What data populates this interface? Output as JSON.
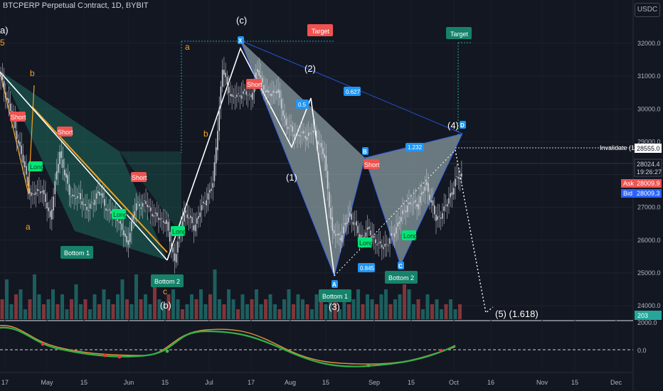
{
  "header": {
    "title": "BTCPERP Perpetual Contract, 1D, BYBIT",
    "currency": "USDC"
  },
  "chart_data": {
    "type": "candlestick",
    "price_ticks": [
      24000,
      25000,
      26000,
      27000,
      28000,
      29000,
      30000,
      31000,
      32000
    ],
    "price_tick_labels": [
      "24000.0",
      "25000.0",
      "26000.0",
      "27000.0",
      "28000.0",
      "29000.0",
      "30000.0",
      "31000.0",
      "32000.0"
    ],
    "x_labels": [
      "17",
      "May",
      "15",
      "Jun",
      "15",
      "Jul",
      "17",
      "Aug",
      "15",
      "Sep",
      "15",
      "Oct",
      "16",
      "Nov",
      "15",
      "Dec"
    ],
    "price_path": [
      [
        0,
        31100
      ],
      [
        8,
        29800
      ],
      [
        14,
        28600
      ],
      [
        20,
        27300
      ],
      [
        26,
        27600
      ],
      [
        32,
        26700
      ],
      [
        38,
        28700
      ],
      [
        44,
        27400
      ],
      [
        50,
        27300
      ],
      [
        56,
        26900
      ],
      [
        62,
        27500
      ],
      [
        68,
        26900
      ],
      [
        74,
        26700
      ],
      [
        80,
        25900
      ],
      [
        86,
        27100
      ],
      [
        92,
        27100
      ],
      [
        98,
        26700
      ],
      [
        104,
        26600
      ],
      [
        110,
        25400
      ],
      [
        116,
        26900
      ],
      [
        122,
        26400
      ],
      [
        128,
        27100
      ],
      [
        134,
        27700
      ],
      [
        140,
        31200
      ],
      [
        146,
        30300
      ],
      [
        152,
        30500
      ],
      [
        158,
        30400
      ],
      [
        162,
        31200
      ],
      [
        168,
        30400
      ],
      [
        174,
        30600
      ],
      [
        180,
        29500
      ],
      [
        186,
        29200
      ],
      [
        192,
        29200
      ],
      [
        198,
        29300
      ],
      [
        204,
        28500
      ],
      [
        209,
        26200
      ],
      [
        214,
        26100
      ],
      [
        220,
        26800
      ],
      [
        226,
        26100
      ],
      [
        232,
        26300
      ],
      [
        238,
        25800
      ],
      [
        244,
        25900
      ],
      [
        250,
        26500
      ],
      [
        256,
        27100
      ],
      [
        262,
        27100
      ],
      [
        268,
        27700
      ],
      [
        274,
        26600
      ],
      [
        280,
        27000
      ],
      [
        286,
        27800
      ],
      [
        290,
        28000
      ]
    ],
    "volume_ratios": [
      0.4,
      0.8,
      0.3,
      0.5,
      0.6,
      0.2,
      0.4,
      0.9,
      0.5,
      0.3,
      0.4,
      0.6,
      0.3,
      0.5,
      0.2,
      0.4,
      0.7,
      0.3,
      0.4,
      0.2,
      0.5,
      0.3,
      0.6,
      0.4,
      0.3,
      0.5,
      0.8,
      0.4,
      0.3,
      0.9,
      0.4,
      0.5,
      0.3,
      0.7,
      0.4,
      0.3,
      0.5,
      0.6,
      0.4,
      0.2,
      0.3,
      0.5,
      0.4,
      0.6,
      0.3,
      0.5,
      1.0,
      0.4,
      0.3,
      0.6,
      0.4,
      0.2,
      0.5,
      0.3,
      0.4,
      0.6,
      0.3,
      0.4,
      0.5,
      0.3,
      0.2,
      0.4,
      0.6,
      0.3,
      0.5,
      0.4,
      0.3,
      0.2,
      0.5,
      0.4,
      0.3,
      0.6,
      0.4,
      0.2,
      0.5,
      0.3,
      0.4,
      0.6,
      0.3,
      0.5,
      0.4,
      0.3,
      0.5,
      0.6,
      0.3,
      0.4,
      0.5,
      0.7,
      0.6,
      0.3,
      0.4,
      0.2,
      0.5,
      0.3,
      0.4,
      0.2,
      0.3,
      0.4,
      0.2,
      0.3
    ],
    "current_price_label": "28024.4",
    "countdown": "19:26:27",
    "ask": {
      "label": "Ask",
      "value": "28009.9"
    },
    "bid": {
      "label": "Bid",
      "value": "28009.3"
    },
    "invalidate": {
      "label": "Invalidate (1)",
      "value": "28555.0",
      "price": 28555
    },
    "volume_tag": "203",
    "osc_top_label": "2000.0",
    "osc_zero_label": "0.0",
    "projection_label": "(5) (1.618)",
    "wave_labels": {
      "a_top": "a)",
      "five": "5",
      "b": "b",
      "a_lower": "a",
      "c_top": "(c)",
      "a_jul": "a",
      "b_jul": "b",
      "c_jun": "c",
      "b_jun": "(b)",
      "two": "(2)",
      "one": "(1)",
      "three": "(3)",
      "four": "(4)"
    },
    "pattern_points": {
      "X": "X",
      "A": "A",
      "B": "B",
      "C": "C",
      "D": "D",
      "ratio_627": "0.627",
      "ratio_5": "0.5",
      "ratio_845": "0.845",
      "ratio_1": "1.232"
    },
    "signals": {
      "short": "Short",
      "long": "Long",
      "target": "Target",
      "bottom1": "Bottom 1",
      "bottom2": "Bottom 2"
    }
  }
}
